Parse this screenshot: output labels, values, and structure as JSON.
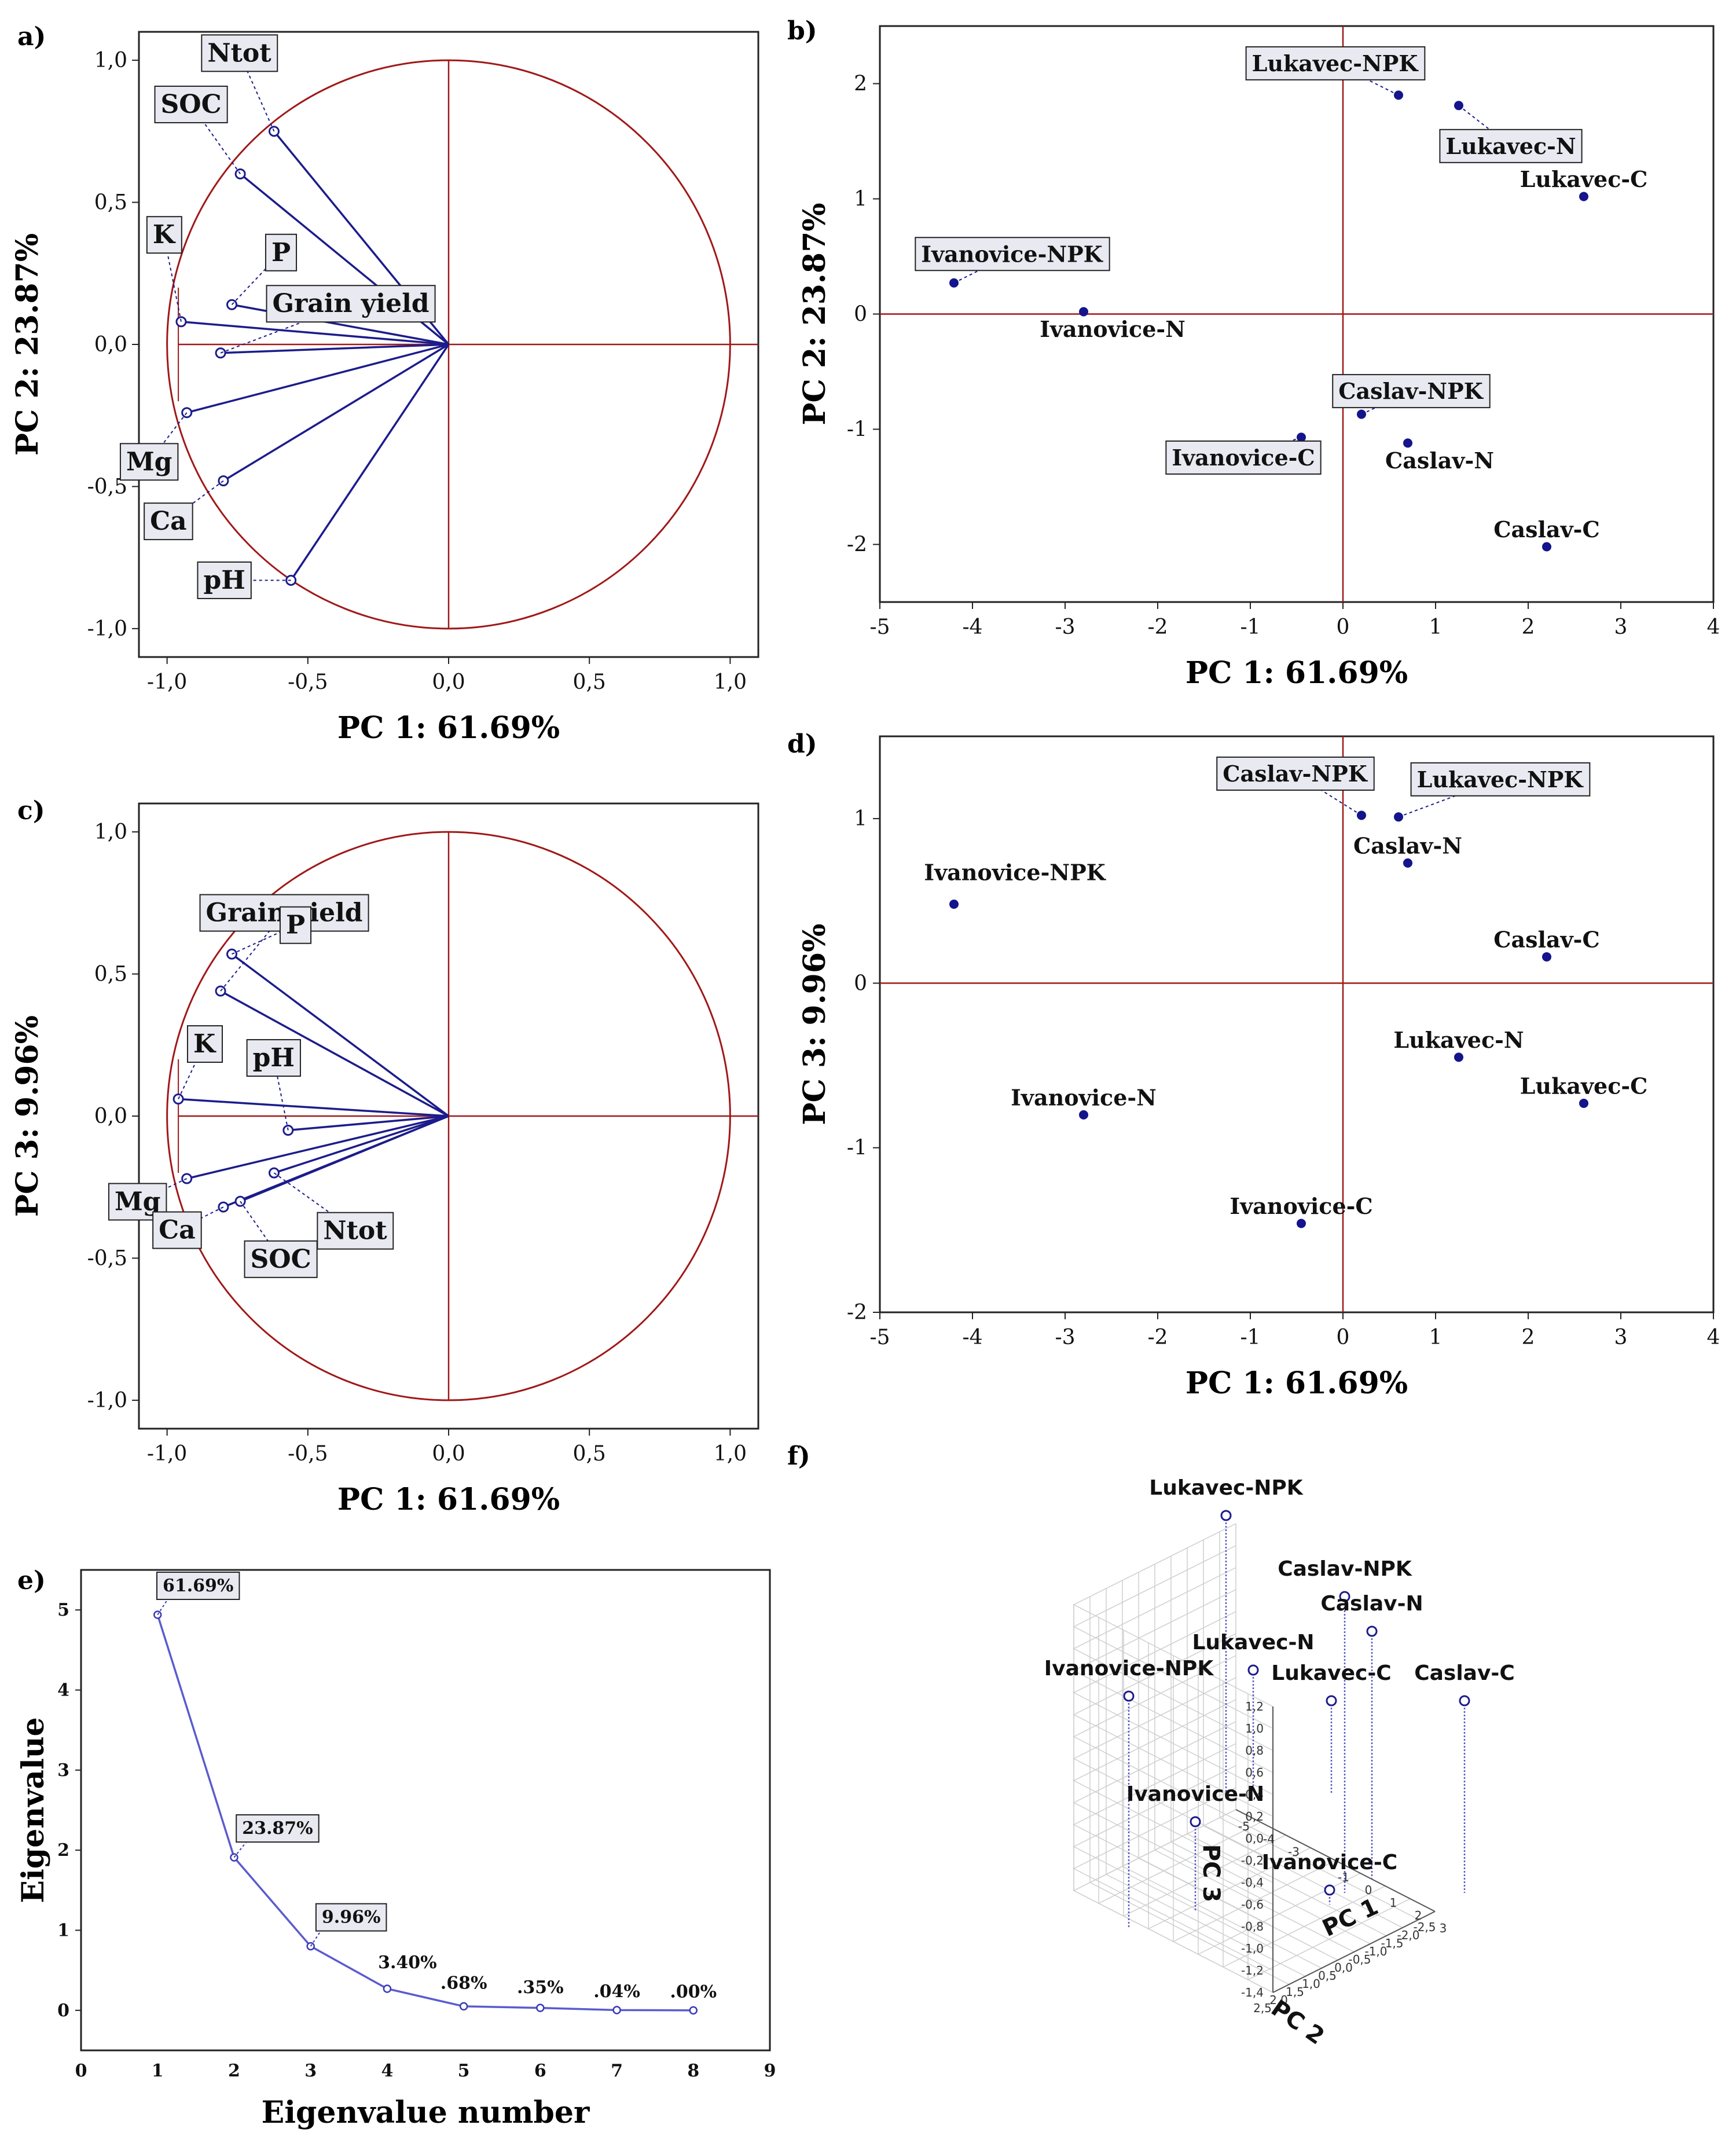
{
  "chart_data": [
    {
      "panel": "a)",
      "type": "scatter",
      "subtype": "correlation-circle",
      "xlabel": "PC 1: 61.69%",
      "ylabel": "PC 2: 23.87%",
      "xlim": [
        -1.0,
        1.0
      ],
      "ylim": [
        -1.0,
        1.0
      ],
      "xticks": [
        "-1,0",
        "-0,5",
        "0,0",
        "0,5",
        "1,0"
      ],
      "yticks": [
        "1,0",
        "0,5",
        "0,0",
        "-0,5",
        "-1,0"
      ],
      "variables": [
        {
          "name": "Ntot",
          "x": -0.62,
          "y": 0.75
        },
        {
          "name": "SOC",
          "x": -0.74,
          "y": 0.6
        },
        {
          "name": "K",
          "x": -0.95,
          "y": 0.08
        },
        {
          "name": "P",
          "x": -0.77,
          "y": 0.14
        },
        {
          "name": "Grain yield",
          "x": -0.81,
          "y": -0.03
        },
        {
          "name": "Mg",
          "x": -0.93,
          "y": -0.24
        },
        {
          "name": "Ca",
          "x": -0.8,
          "y": -0.48
        },
        {
          "name": "pH",
          "x": -0.56,
          "y": -0.83
        }
      ]
    },
    {
      "panel": "b)",
      "type": "scatter",
      "xlabel": "PC 1: 61.69%",
      "ylabel": "PC 2: 23.87%",
      "xlim": [
        -5,
        4
      ],
      "ylim": [
        -2.5,
        2.5
      ],
      "xticks": [
        "-5",
        "-4",
        "-3",
        "-2",
        "-1",
        "0",
        "1",
        "2",
        "3",
        "4"
      ],
      "yticks": [
        "2",
        "1",
        "0",
        "-1",
        "-2"
      ],
      "points": [
        {
          "name": "Lukavec-NPK",
          "x": 0.6,
          "y": 1.9
        },
        {
          "name": "Lukavec-N",
          "x": 1.25,
          "y": 1.81
        },
        {
          "name": "Lukavec-C",
          "x": 2.6,
          "y": 1.02
        },
        {
          "name": "Ivanovice-NPK",
          "x": -4.2,
          "y": 0.27
        },
        {
          "name": "Ivanovice-N",
          "x": -2.8,
          "y": 0.02
        },
        {
          "name": "Caslav-NPK",
          "x": 0.2,
          "y": -0.87
        },
        {
          "name": "Ivanovice-C",
          "x": -0.45,
          "y": -1.07
        },
        {
          "name": "Caslav-N",
          "x": 0.7,
          "y": -1.12
        },
        {
          "name": "Caslav-C",
          "x": 2.2,
          "y": -2.02
        }
      ]
    },
    {
      "panel": "c)",
      "type": "scatter",
      "subtype": "correlation-circle",
      "xlabel": "PC 1: 61.69%",
      "ylabel": "PC 3:  9.96%",
      "xlim": [
        -1.0,
        1.0
      ],
      "ylim": [
        -1.0,
        1.0
      ],
      "xticks": [
        "-1,0",
        "-0,5",
        "0,0",
        "0,5",
        "1,0"
      ],
      "yticks": [
        "1,0",
        "0,5",
        "0,0",
        "-0,5",
        "-1,0"
      ],
      "variables": [
        {
          "name": "Grain yield",
          "x": -0.81,
          "y": 0.44
        },
        {
          "name": "P",
          "x": -0.77,
          "y": 0.57
        },
        {
          "name": "K",
          "x": -0.96,
          "y": 0.06
        },
        {
          "name": "pH",
          "x": -0.57,
          "y": -0.05
        },
        {
          "name": "Mg",
          "x": -0.93,
          "y": -0.22
        },
        {
          "name": "Ntot",
          "x": -0.62,
          "y": -0.2
        },
        {
          "name": "Ca",
          "x": -0.8,
          "y": -0.32
        },
        {
          "name": "SOC",
          "x": -0.74,
          "y": -0.3
        }
      ]
    },
    {
      "panel": "d)",
      "type": "scatter",
      "xlabel": "PC 1: 61.69%",
      "ylabel": "PC 3:  9.96%",
      "xlim": [
        -5,
        4
      ],
      "ylim": [
        -2,
        1.5
      ],
      "xticks": [
        "-5",
        "-4",
        "-3",
        "-2",
        "-1",
        "0",
        "1",
        "2",
        "3",
        "4"
      ],
      "yticks": [
        "1",
        "0",
        "-1",
        "-2"
      ],
      "points": [
        {
          "name": "Caslav-NPK",
          "x": 0.2,
          "y": 1.02
        },
        {
          "name": "Lukavec-NPK",
          "x": 0.6,
          "y": 1.01
        },
        {
          "name": "Caslav-N",
          "x": 0.7,
          "y": 0.73
        },
        {
          "name": "Ivanovice-NPK",
          "x": -4.2,
          "y": 0.48
        },
        {
          "name": "Caslav-C",
          "x": 2.2,
          "y": 0.16
        },
        {
          "name": "Lukavec-N",
          "x": 1.25,
          "y": -0.45
        },
        {
          "name": "Lukavec-C",
          "x": 2.6,
          "y": -0.73
        },
        {
          "name": "Ivanovice-N",
          "x": -2.8,
          "y": -0.8
        },
        {
          "name": "Ivanovice-C",
          "x": -0.45,
          "y": -1.46
        }
      ]
    },
    {
      "panel": "e)",
      "type": "line",
      "xlabel": "Eigenvalue number",
      "ylabel": "Eigenvalue",
      "xlim": [
        0,
        9
      ],
      "ylim": [
        -0.5,
        5.5
      ],
      "xticks": [
        "0",
        "1",
        "2",
        "3",
        "4",
        "5",
        "6",
        "7",
        "8",
        "9"
      ],
      "yticks": [
        "5",
        "4",
        "3",
        "2",
        "1",
        "0"
      ],
      "x": [
        1,
        2,
        3,
        4,
        5,
        6,
        7,
        8
      ],
      "values": [
        4.94,
        1.91,
        0.8,
        0.27,
        0.05,
        0.03,
        0.003,
        0.0
      ],
      "labels": [
        "61.69%",
        "23.87%",
        "9.96%",
        "3.40%",
        ".68%",
        ".35%",
        ".04%",
        ".00%"
      ]
    },
    {
      "panel": "f)",
      "type": "scatter",
      "subtype": "3d",
      "xlabel": "PC 1",
      "ylabel": "PC 2",
      "zlabel": "PC 3",
      "zticks": [
        "1,2",
        "1,0",
        "0,8",
        "0,6",
        "0,4",
        "0,2",
        "0,0",
        "-0,2",
        "-0,4",
        "-0,6",
        "-0,8",
        "-1,0",
        "-1,2",
        "-1,4"
      ],
      "xticks": [
        "-5",
        "-4",
        "-3",
        "-2",
        "-1",
        "0",
        "1",
        "2",
        "3"
      ],
      "yticks": [
        "2,5",
        "2,0",
        "1,5",
        "1,0",
        "0,5",
        "0,0",
        "-0,5",
        "-1,0",
        "-1,5",
        "-2,0",
        "-2,5"
      ],
      "points": [
        {
          "name": "Lukavec-NPK",
          "x": 0.6,
          "y": 1.9,
          "z": 1.01
        },
        {
          "name": "Caslav-NPK",
          "x": 0.2,
          "y": -0.87,
          "z": 1.02
        },
        {
          "name": "Caslav-N",
          "x": 0.7,
          "y": -1.12,
          "z": 0.73
        },
        {
          "name": "Lukavec-N",
          "x": 1.25,
          "y": 1.81,
          "z": -0.45
        },
        {
          "name": "Ivanovice-NPK",
          "x": -4.2,
          "y": 0.27,
          "z": 0.48
        },
        {
          "name": "Lukavec-C",
          "x": 2.6,
          "y": 1.02,
          "z": -0.73
        },
        {
          "name": "Caslav-C",
          "x": 2.2,
          "y": -2.02,
          "z": 0.16
        },
        {
          "name": "Ivanovice-N",
          "x": -2.8,
          "y": 0.02,
          "z": -0.8
        },
        {
          "name": "Ivanovice-C",
          "x": -0.45,
          "y": -1.07,
          "z": -1.46
        }
      ]
    }
  ]
}
